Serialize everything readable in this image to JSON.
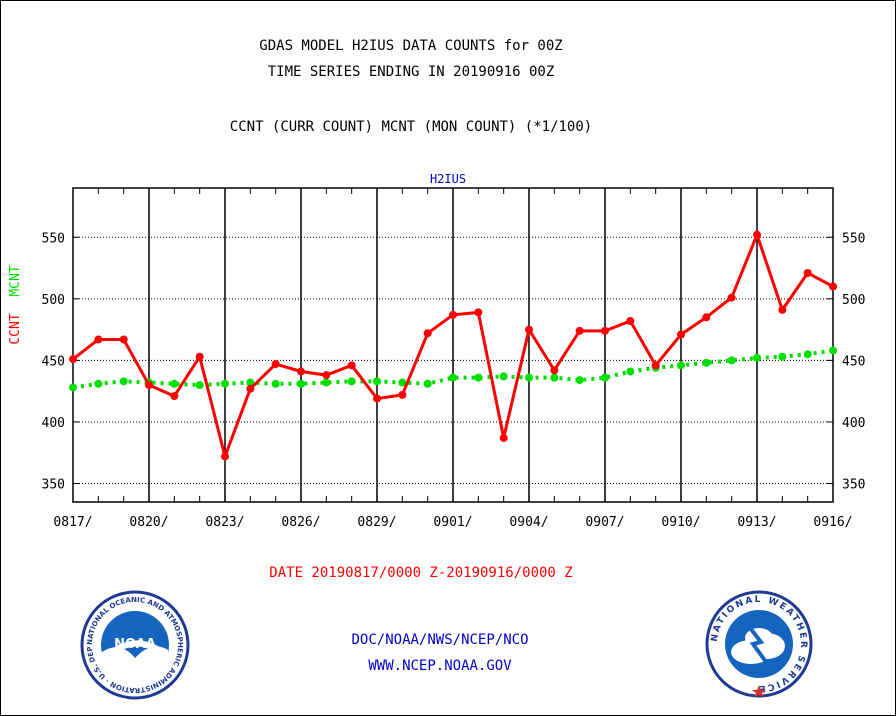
{
  "header": {
    "title_line1": "GDAS MODEL H2IUS DATA COUNTS for 00Z",
    "title_line2": "TIME SERIES ENDING IN 20190916 00Z",
    "subtitle": "CCNT (CURR COUNT) MCNT (MON COUNT) (*1/100)"
  },
  "chart_data": {
    "type": "line",
    "title": "H2IUS",
    "ylabel_ccnt": "CCNT",
    "ylabel_mcnt": "MCNT",
    "xlabel": "DATE 20190817/0000 Z-20190916/0000 Z",
    "ylim": [
      335,
      590
    ],
    "yticks": [
      350,
      400,
      450,
      500,
      550
    ],
    "xtick_labels": [
      "0817/",
      "0820/",
      "0823/",
      "0826/",
      "0829/",
      "0901/",
      "0904/",
      "0907/",
      "0910/",
      "0913/",
      "0916/"
    ],
    "x_day_count": 31,
    "grid": true,
    "colors": {
      "ccnt": "#ff0000",
      "mcnt": "#00e000",
      "title": "#0000cc"
    },
    "series": [
      {
        "name": "CCNT",
        "values": [
          451,
          467,
          467,
          430,
          421,
          453,
          372,
          427,
          447,
          441,
          438,
          446,
          419,
          422,
          472,
          487,
          489,
          387,
          475,
          442,
          474,
          474,
          482,
          446,
          471,
          485,
          501,
          552,
          491,
          521,
          510
        ]
      },
      {
        "name": "MCNT",
        "values": [
          428,
          431,
          433,
          432,
          431,
          430,
          431,
          432,
          431,
          431,
          432,
          433,
          433,
          432,
          431,
          436,
          436,
          437,
          436,
          436,
          434,
          436,
          441,
          444,
          446,
          448,
          450,
          452,
          453,
          455,
          458
        ]
      }
    ]
  },
  "footer": {
    "line1": "DOC/NOAA/NWS/NCEP/NCO",
    "line2": "WWW.NCEP.NOAA.GOV"
  },
  "logos": {
    "noaa_text": "NOAA",
    "noaa_ring": "NATIONAL OCEANIC AND ATMOSPHERIC ADMINISTRATION · U.S. DEPARTMENT OF COMMERCE ·",
    "nws_ring": "NATIONAL WEATHER SERVICE"
  }
}
